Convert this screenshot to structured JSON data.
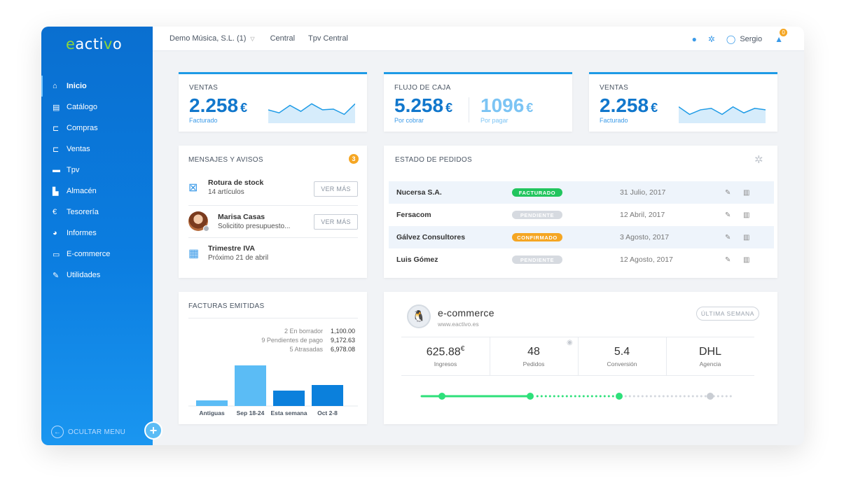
{
  "brand": {
    "logo_e": "e",
    "logo_mid": "acti",
    "logo_v": "v",
    "logo_o": "o"
  },
  "sidebar": {
    "items": [
      {
        "label": "Inicio",
        "icon": "dashboard-icon",
        "glyph": "⌂"
      },
      {
        "label": "Catálogo",
        "icon": "catalog-icon",
        "glyph": "▤"
      },
      {
        "label": "Compras",
        "icon": "cart-icon",
        "glyph": "⊏"
      },
      {
        "label": "Ventas",
        "icon": "sales-icon",
        "glyph": "⊏"
      },
      {
        "label": "Tpv",
        "icon": "tpv-icon",
        "glyph": "▬"
      },
      {
        "label": "Almacén",
        "icon": "warehouse-icon",
        "glyph": "▙"
      },
      {
        "label": "Tesorería",
        "icon": "euro-icon",
        "glyph": "€"
      },
      {
        "label": "Informes",
        "icon": "pie-icon",
        "glyph": "◕"
      },
      {
        "label": "E-commerce",
        "icon": "ecommerce-icon",
        "glyph": "▭"
      },
      {
        "label": "Utilidades",
        "icon": "wrench-icon",
        "glyph": "✎"
      }
    ],
    "hide_menu": "OCULTAR MENU",
    "plus": "+"
  },
  "topbar": {
    "company": "Demo Música, S.L. (1)",
    "branch": "Central",
    "tpv": "Tpv Central",
    "user": "Sergio",
    "notifications": "0"
  },
  "kpi": [
    {
      "title": "VENTAS",
      "value": "2.258",
      "currency": "€",
      "sub": "Facturado",
      "spark": [
        14,
        10,
        20,
        12,
        22,
        14,
        15,
        8,
        22
      ]
    },
    {
      "title": "FLUJO DE CAJA",
      "value": "5.258",
      "currency": "€",
      "sub": "Por cobrar",
      "value2": "1096",
      "currency2": "€",
      "sub2": "Por pagar"
    },
    {
      "title": "VENTAS",
      "value": "2.258",
      "currency": "€",
      "sub": "Facturado",
      "spark": [
        18,
        8,
        14,
        16,
        8,
        18,
        10,
        16,
        14
      ]
    }
  ],
  "messages": {
    "title": "MENSAJES Y AVISOS",
    "count": "3",
    "items": [
      {
        "title": "Rotura de stock",
        "sub": "14 artículos",
        "action": "VER MÁS"
      },
      {
        "title": "Marisa Casas",
        "sub": "Solicitito presupuesto...",
        "action": "VER MÁS"
      },
      {
        "title": "Trimestre IVA",
        "sub": "Próximo 21 de abril"
      }
    ]
  },
  "orders": {
    "title": "ESTADO DE PEDIDOS",
    "rows": [
      {
        "name": "Nucersa S.A.",
        "status": "FACTURADO",
        "color": "#22c55e",
        "date": "31 Julio, 2017"
      },
      {
        "name": "Fersacom",
        "status": "PENDIENTE",
        "color": "#d6dae0",
        "date": "12 Abril, 2017"
      },
      {
        "name": "Gálvez Consultores",
        "status": "CONFIRMADO",
        "color": "#f5a623",
        "date": "3 Agosto, 2017"
      },
      {
        "name": "Luis Gómez",
        "status": "PENDIENTE",
        "color": "#d6dae0",
        "date": "12 Agosto, 2017"
      }
    ]
  },
  "invoices": {
    "title": "FACTURAS EMITIDAS",
    "legend": [
      {
        "label": "2 En borrador",
        "value": "1,100.00"
      },
      {
        "label": "9 Pendientes de pago",
        "value": "9,172.63"
      },
      {
        "label": "5 Atrasadas",
        "value": "6,978.08"
      }
    ]
  },
  "chart_data": {
    "type": "bar",
    "categories": [
      "Antiguas",
      "Sep 18-24",
      "Esta semana",
      "Oct 2-8"
    ],
    "values": [
      8,
      58,
      22,
      30
    ],
    "colors": [
      "#5bbcf5",
      "#5bbcf5",
      "#0b80dc",
      "#0b80dc"
    ],
    "ylim": [
      0,
      60
    ]
  },
  "ecommerce": {
    "title": "e-commerce",
    "url": "www.eactivo.es",
    "range": "ÚLTIMA SEMANA",
    "stats": [
      {
        "value": "625.88",
        "unit": "€",
        "label": "Ingresos"
      },
      {
        "value": "48",
        "unit": "",
        "label": "Pedidos"
      },
      {
        "value": "5.4",
        "unit": "",
        "label": "Conversión"
      },
      {
        "value": "DHL",
        "unit": "",
        "label": "Agencia"
      }
    ],
    "progress": 0.64
  }
}
